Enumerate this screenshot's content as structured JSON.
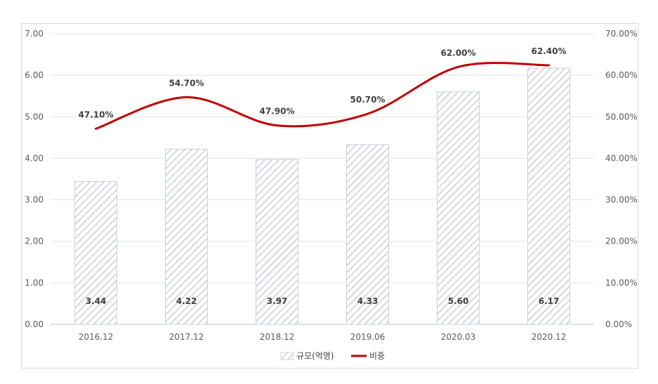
{
  "chart_data": {
    "type": "bar",
    "categories": [
      "2016.12",
      "2017.12",
      "2018.12",
      "2019.06",
      "2020.03",
      "2020.12"
    ],
    "series": [
      {
        "name": "규모(억명)",
        "type": "bar",
        "axis": "left",
        "values": [
          3.44,
          4.22,
          3.97,
          4.33,
          5.6,
          6.17
        ],
        "labels": [
          "3.44",
          "4.22",
          "3.97",
          "4.33",
          "5.60",
          "6.17"
        ],
        "color": "#c9cfd8"
      },
      {
        "name": "비중",
        "type": "line",
        "axis": "right",
        "values": [
          47.1,
          54.7,
          47.9,
          50.7,
          62.0,
          62.4
        ],
        "labels": [
          "47.10%",
          "54.70%",
          "47.90%",
          "50.70%",
          "62.00%",
          "62.40%"
        ],
        "color": "#c00000"
      }
    ],
    "left_axis": {
      "ylim": [
        0,
        7
      ],
      "ticks": [
        "0.00",
        "1.00",
        "2.00",
        "3.00",
        "4.00",
        "5.00",
        "6.00",
        "7.00"
      ]
    },
    "right_axis": {
      "ylim": [
        0,
        70
      ],
      "ticks": [
        "0.00%",
        "10.00%",
        "20.00%",
        "30.00%",
        "40.00%",
        "50.00%",
        "60.00%",
        "70.00%"
      ]
    },
    "grid": true,
    "legend": "bottom-center"
  }
}
